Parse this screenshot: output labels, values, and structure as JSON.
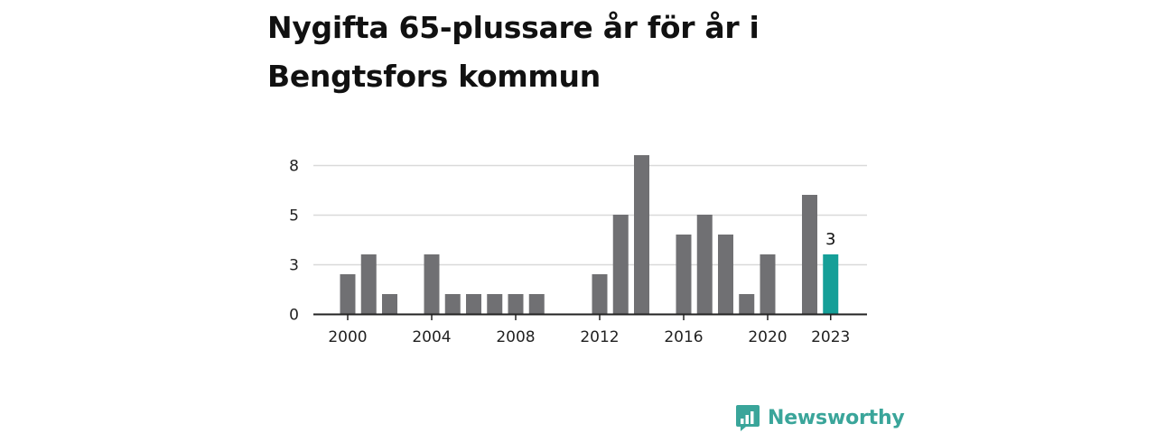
{
  "title": "Nygifta 65-plussare år för år i Bengtsfors kommun",
  "brand": {
    "name": "Newsworthy",
    "color": "#3aa59a"
  },
  "chart_data": {
    "type": "bar",
    "x": [
      2000,
      2001,
      2002,
      2004,
      2005,
      2006,
      2007,
      2008,
      2009,
      2012,
      2013,
      2014,
      2016,
      2017,
      2018,
      2019,
      2020,
      2022,
      2023
    ],
    "values": [
      2,
      3,
      1,
      3,
      1,
      1,
      1,
      1,
      1,
      2,
      5,
      8,
      4,
      5,
      4,
      1,
      3,
      6,
      3
    ],
    "x_ticks": [
      "2000",
      "2004",
      "2008",
      "2012",
      "2016",
      "2020",
      "2023"
    ],
    "y_ticks": [
      "0",
      "3",
      "5",
      "8"
    ],
    "y_tick_values": [
      0,
      2.5,
      5,
      7.5
    ],
    "ylim": [
      0,
      8
    ],
    "xlim": [
      1999,
      2024
    ],
    "highlight": {
      "x": 2023,
      "label": "3"
    },
    "colors": {
      "bar": "#707073",
      "highlight": "#159f98",
      "grid": "#d9d9d9",
      "axis": "#222222"
    },
    "grid": true,
    "title": "Nygifta 65-plussare år för år i Bengtsfors kommun",
    "xlabel": "",
    "ylabel": ""
  }
}
